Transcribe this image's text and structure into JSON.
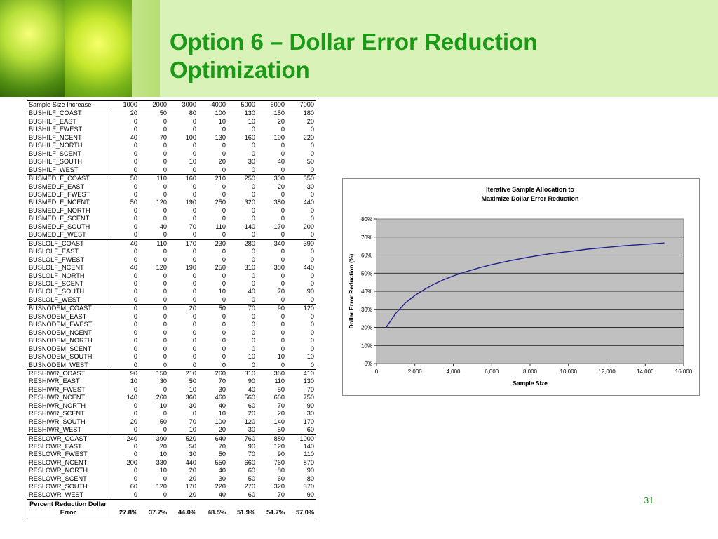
{
  "slide": {
    "title": "Option 6 – Dollar Error Reduction\nOptimization",
    "page_number": "31",
    "title_color": "#1a9a16"
  },
  "table": {
    "header": [
      "Sample Size Increase",
      "1000",
      "2000",
      "3000",
      "4000",
      "5000",
      "6000",
      "7000"
    ],
    "groups": [
      [
        [
          "BUSHILF_COAST",
          20,
          50,
          80,
          100,
          130,
          150,
          180
        ],
        [
          "BUSHILF_EAST",
          0,
          0,
          0,
          10,
          10,
          20,
          20
        ],
        [
          "BUSHILF_FWEST",
          0,
          0,
          0,
          0,
          0,
          0,
          0
        ],
        [
          "BUSHILF_NCENT",
          40,
          70,
          100,
          130,
          160,
          190,
          220
        ],
        [
          "BUSHILF_NORTH",
          0,
          0,
          0,
          0,
          0,
          0,
          0
        ],
        [
          "BUSHILF_SCENT",
          0,
          0,
          0,
          0,
          0,
          0,
          0
        ],
        [
          "BUSHILF_SOUTH",
          0,
          0,
          10,
          20,
          30,
          40,
          50
        ],
        [
          "BUSHILF_WEST",
          0,
          0,
          0,
          0,
          0,
          0,
          0
        ]
      ],
      [
        [
          "BUSMEDLF_COAST",
          50,
          110,
          160,
          210,
          250,
          300,
          350
        ],
        [
          "BUSMEDLF_EAST",
          0,
          0,
          0,
          0,
          0,
          20,
          30
        ],
        [
          "BUSMEDLF_FWEST",
          0,
          0,
          0,
          0,
          0,
          0,
          0
        ],
        [
          "BUSMEDLF_NCENT",
          50,
          120,
          190,
          250,
          320,
          380,
          440
        ],
        [
          "BUSMEDLF_NORTH",
          0,
          0,
          0,
          0,
          0,
          0,
          0
        ],
        [
          "BUSMEDLF_SCENT",
          0,
          0,
          0,
          0,
          0,
          0,
          0
        ],
        [
          "BUSMEDLF_SOUTH",
          0,
          40,
          70,
          110,
          140,
          170,
          200
        ],
        [
          "BUSMEDLF_WEST",
          0,
          0,
          0,
          0,
          0,
          0,
          0
        ]
      ],
      [
        [
          "BUSLOLF_COAST",
          40,
          110,
          170,
          230,
          280,
          340,
          390
        ],
        [
          "BUSLOLF_EAST",
          0,
          0,
          0,
          0,
          0,
          0,
          0
        ],
        [
          "BUSLOLF_FWEST",
          0,
          0,
          0,
          0,
          0,
          0,
          0
        ],
        [
          "BUSLOLF_NCENT",
          40,
          120,
          190,
          250,
          310,
          380,
          440
        ],
        [
          "BUSLOLF_NORTH",
          0,
          0,
          0,
          0,
          0,
          0,
          0
        ],
        [
          "BUSLOLF_SCENT",
          0,
          0,
          0,
          0,
          0,
          0,
          0
        ],
        [
          "BUSLOLF_SOUTH",
          0,
          0,
          0,
          10,
          40,
          70,
          90
        ],
        [
          "BUSLOLF_WEST",
          0,
          0,
          0,
          0,
          0,
          0,
          0
        ]
      ],
      [
        [
          "BUSNODEM_COAST",
          0,
          0,
          20,
          50,
          70,
          90,
          120
        ],
        [
          "BUSNODEM_EAST",
          0,
          0,
          0,
          0,
          0,
          0,
          0
        ],
        [
          "BUSNODEM_FWEST",
          0,
          0,
          0,
          0,
          0,
          0,
          0
        ],
        [
          "BUSNODEM_NCENT",
          0,
          0,
          0,
          0,
          0,
          0,
          0
        ],
        [
          "BUSNODEM_NORTH",
          0,
          0,
          0,
          0,
          0,
          0,
          0
        ],
        [
          "BUSNODEM_SCENT",
          0,
          0,
          0,
          0,
          0,
          0,
          0
        ],
        [
          "BUSNODEM_SOUTH",
          0,
          0,
          0,
          0,
          10,
          10,
          10
        ],
        [
          "BUSNODEM_WEST",
          0,
          0,
          0,
          0,
          0,
          0,
          0
        ]
      ],
      [
        [
          "RESHIWR_COAST",
          90,
          150,
          210,
          260,
          310,
          360,
          410
        ],
        [
          "RESHIWR_EAST",
          10,
          30,
          50,
          70,
          90,
          110,
          130
        ],
        [
          "RESHIWR_FWEST",
          0,
          0,
          10,
          30,
          40,
          50,
          70
        ],
        [
          "RESHIWR_NCENT",
          140,
          260,
          360,
          460,
          560,
          660,
          750
        ],
        [
          "RESHIWR_NORTH",
          0,
          10,
          30,
          40,
          60,
          70,
          90
        ],
        [
          "RESHIWR_SCENT",
          0,
          0,
          0,
          10,
          20,
          20,
          30
        ],
        [
          "RESHIWR_SOUTH",
          20,
          50,
          70,
          100,
          120,
          140,
          170
        ],
        [
          "RESHIWR_WEST",
          0,
          0,
          10,
          20,
          30,
          50,
          60
        ]
      ],
      [
        [
          "RESLOWR_COAST",
          240,
          390,
          520,
          640,
          760,
          880,
          1000
        ],
        [
          "RESLOWR_EAST",
          0,
          20,
          50,
          70,
          90,
          120,
          140
        ],
        [
          "RESLOWR_FWEST",
          0,
          10,
          30,
          50,
          70,
          90,
          110
        ],
        [
          "RESLOWR_NCENT",
          200,
          330,
          440,
          550,
          660,
          760,
          870
        ],
        [
          "RESLOWR_NORTH",
          0,
          10,
          20,
          40,
          60,
          80,
          90
        ],
        [
          "RESLOWR_SCENT",
          0,
          0,
          20,
          30,
          50,
          60,
          80
        ],
        [
          "RESLOWR_SOUTH",
          60,
          120,
          170,
          220,
          270,
          320,
          370
        ],
        [
          "RESLOWR_WEST",
          0,
          0,
          20,
          40,
          60,
          70,
          90
        ]
      ]
    ],
    "footer_label": "Percent Reduction Dollar Error",
    "footer_values": [
      "27.8%",
      "37.7%",
      "44.0%",
      "48.5%",
      "51.9%",
      "54.7%",
      "57.0%"
    ]
  },
  "chart_data": {
    "type": "line",
    "title": "Iterative Sample Allocation to\nMaximize Dollar Error Reduction",
    "xlabel": "Sample Size",
    "ylabel": "Dollar Error Reduction (%)",
    "xlim": [
      0,
      16000
    ],
    "ylim": [
      0,
      0.8
    ],
    "x_ticks": [
      "0",
      "2,000",
      "4,000",
      "6,000",
      "8,000",
      "10,000",
      "12,000",
      "14,000",
      "16,000"
    ],
    "y_ticks": [
      "0%",
      "10%",
      "20%",
      "30%",
      "40%",
      "50%",
      "60%",
      "70%",
      "80%"
    ],
    "grid": true,
    "plot_background": "#c0c0c0",
    "line_color": "#1f1f8f",
    "x": [
      500,
      1000,
      1500,
      2000,
      2500,
      3000,
      3500,
      4000,
      4500,
      5000,
      5500,
      6000,
      7000,
      8000,
      9000,
      10000,
      11000,
      12000,
      13000,
      14000,
      15000
    ],
    "values": [
      0.2,
      0.278,
      0.335,
      0.377,
      0.41,
      0.44,
      0.464,
      0.485,
      0.503,
      0.519,
      0.534,
      0.547,
      0.57,
      0.59,
      0.607,
      0.62,
      0.633,
      0.643,
      0.653,
      0.66,
      0.667
    ]
  }
}
